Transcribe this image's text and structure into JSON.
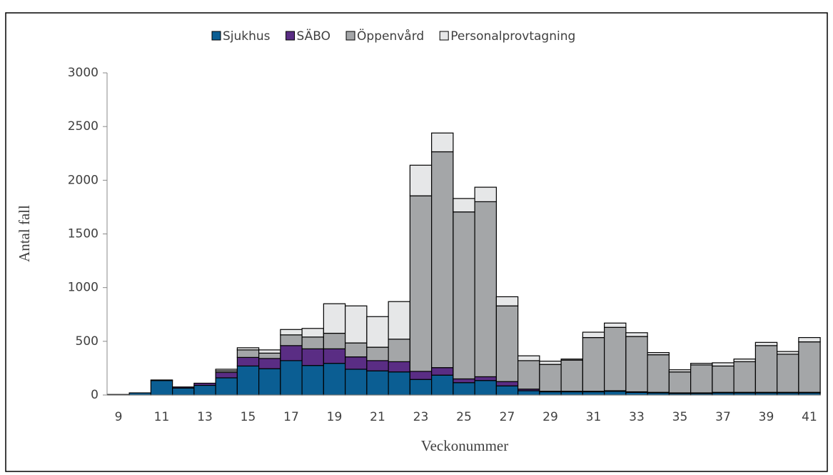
{
  "chart_data": {
    "type": "stacked-bar",
    "categories": [
      "9",
      null,
      "11",
      null,
      "13",
      null,
      "15",
      null,
      "17",
      null,
      "19",
      null,
      "21",
      null,
      "23",
      null,
      "25",
      null,
      "27",
      null,
      "29",
      null,
      "31",
      null,
      "33",
      null,
      "35",
      null,
      "37",
      null,
      "39",
      null,
      "41"
    ],
    "series": [
      {
        "name": "Sjukhus",
        "color": "#0b5e93",
        "values": [
          5,
          20,
          135,
          65,
          90,
          160,
          270,
          245,
          320,
          275,
          295,
          240,
          225,
          215,
          145,
          185,
          115,
          135,
          85,
          40,
          30,
          30,
          30,
          35,
          25,
          20,
          15,
          15,
          20,
          20,
          20,
          20,
          20
        ]
      },
      {
        "name": "SÄBO",
        "color": "#5a2d84",
        "values": [
          0,
          0,
          5,
          10,
          20,
          50,
          80,
          95,
          140,
          155,
          135,
          115,
          95,
          95,
          75,
          70,
          35,
          35,
          40,
          15,
          5,
          5,
          5,
          5,
          5,
          5,
          5,
          5,
          5,
          5,
          5,
          5,
          5
        ]
      },
      {
        "name": "Öppenvård",
        "color": "#a4a6a8",
        "values": [
          0,
          0,
          0,
          0,
          0,
          15,
          70,
          50,
          100,
          110,
          145,
          130,
          125,
          210,
          1635,
          2010,
          1555,
          1630,
          705,
          265,
          250,
          290,
          500,
          590,
          515,
          350,
          195,
          260,
          245,
          285,
          435,
          355,
          470
        ]
      },
      {
        "name": "Personalprovtagning",
        "color": "#e6e7e8",
        "values": [
          0,
          0,
          0,
          0,
          0,
          15,
          20,
          30,
          50,
          80,
          275,
          345,
          285,
          350,
          285,
          175,
          125,
          135,
          85,
          45,
          30,
          10,
          50,
          40,
          35,
          20,
          20,
          15,
          30,
          25,
          30,
          25,
          40
        ]
      }
    ],
    "ylim": [
      0,
      3000
    ],
    "yticks": [
      0,
      500,
      1000,
      1500,
      2000,
      2500,
      3000
    ],
    "y_label": "Antal fall",
    "x_label": "Veckonummer",
    "legend": "top"
  }
}
